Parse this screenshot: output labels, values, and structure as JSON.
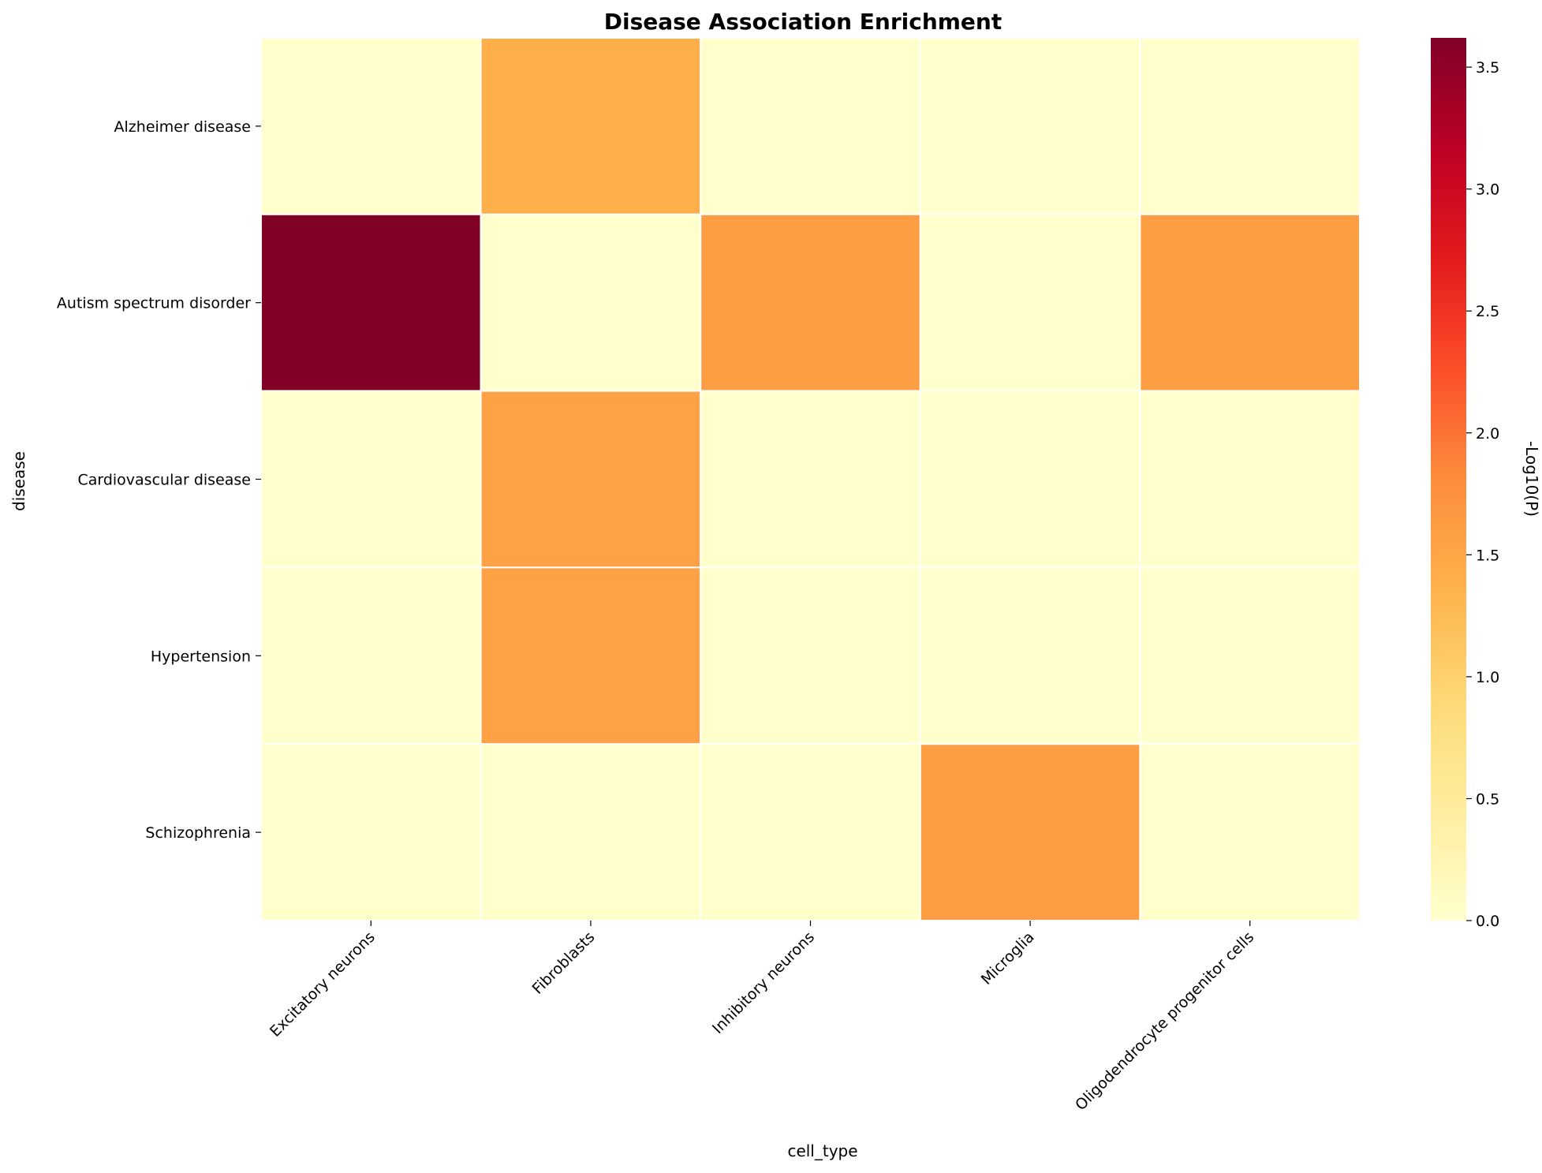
{
  "chart_data": {
    "type": "heatmap",
    "title": "Disease Association Enrichment",
    "xlabel": "cell_type",
    "ylabel": "disease",
    "x_categories": [
      "Excitatory neurons",
      "Fibroblasts",
      "Inhibitory neurons",
      "Microglia",
      "Oligodendrocyte progenitor cells"
    ],
    "y_categories": [
      "Alzheimer disease",
      "Autism spectrum disorder",
      "Cardiovascular disease",
      "Hypertension",
      "Schizophrenia"
    ],
    "values": [
      [
        0.0,
        1.4,
        0.0,
        0.0,
        0.0
      ],
      [
        3.62,
        0.0,
        1.6,
        0.0,
        1.6
      ],
      [
        0.0,
        1.55,
        0.0,
        0.0,
        0.0
      ],
      [
        0.0,
        1.55,
        0.0,
        0.0,
        0.0
      ],
      [
        0.0,
        0.0,
        0.0,
        1.6,
        0.0
      ]
    ],
    "colorbar": {
      "label": "-Log10(P)",
      "range": [
        0,
        3.62
      ],
      "ticks": [
        "0.0",
        "0.5",
        "1.0",
        "1.5",
        "2.0",
        "2.5",
        "3.0",
        "3.5"
      ],
      "colormap": "YlOrRd",
      "colormap_stops": [
        "#ffffcc",
        "#ffeda0",
        "#fed976",
        "#feb24c",
        "#fd8d3c",
        "#fc4e2a",
        "#e31a1c",
        "#bd0026",
        "#800026"
      ]
    },
    "grid": false,
    "cell_separator_color": "#ffffff"
  }
}
